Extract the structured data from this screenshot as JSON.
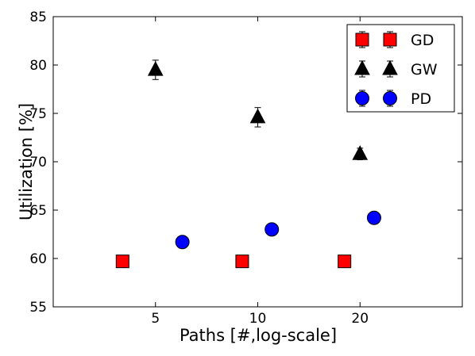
{
  "chart_data": {
    "type": "scatter",
    "title": "",
    "xlabel": "Paths [#,log-scale]",
    "ylabel": "Utilization [%]",
    "x_scale": "log",
    "xlim": [
      2.5,
      40
    ],
    "ylim": [
      55,
      85
    ],
    "x_ticks": [
      5,
      10,
      20
    ],
    "y_ticks": [
      55,
      60,
      65,
      70,
      75,
      80,
      85
    ],
    "grid": false,
    "legend_position": "top-right",
    "series": [
      {
        "name": "GD",
        "marker": "square",
        "color": "#ff0000",
        "x": [
          4,
          9,
          18
        ],
        "y": [
          59.7,
          59.7,
          59.7
        ],
        "error": [
          0.15,
          0.15,
          0.15
        ]
      },
      {
        "name": "GW",
        "marker": "triangle",
        "color": "#000000",
        "x": [
          5,
          10,
          20
        ],
        "y": [
          79.5,
          74.6,
          70.8
        ],
        "error": [
          1.0,
          1.0,
          0.6
        ]
      },
      {
        "name": "PD",
        "marker": "circle",
        "color": "#0000ff",
        "x": [
          6,
          11,
          22
        ],
        "y": [
          61.7,
          63.0,
          64.2
        ],
        "error": [
          0.2,
          0.2,
          0.2
        ]
      }
    ]
  }
}
